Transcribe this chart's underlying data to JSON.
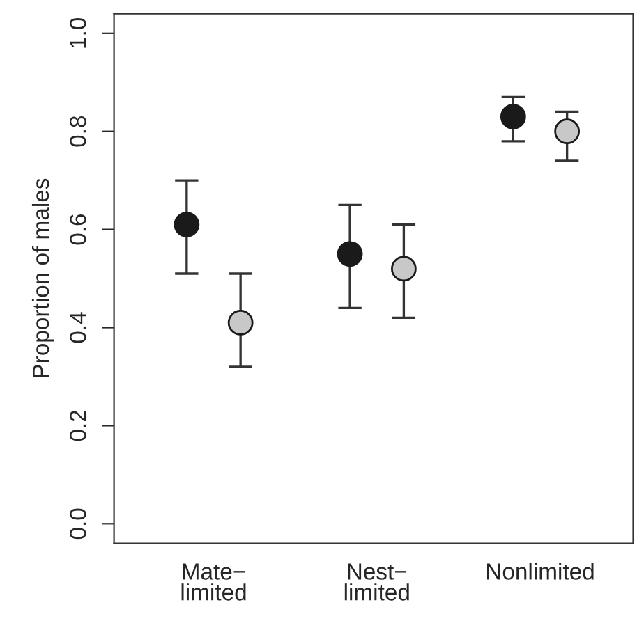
{
  "chart_data": {
    "type": "scatter",
    "ylabel": "Proportion of males",
    "categories": [
      "Mate−\nlimited",
      "Nest−\nlimited",
      "Nonlimited"
    ],
    "series": [
      {
        "color": "#1a1a1a",
        "values": [
          0.61,
          0.55,
          0.83
        ],
        "errors": [
          [
            0.51,
            0.7
          ],
          [
            0.44,
            0.65
          ],
          [
            0.78,
            0.87
          ]
        ]
      },
      {
        "color": "#c8c8c8",
        "values": [
          0.41,
          0.52,
          0.8
        ],
        "errors": [
          [
            0.32,
            0.51
          ],
          [
            0.42,
            0.61
          ],
          [
            0.74,
            0.84
          ]
        ]
      }
    ],
    "ylim": [
      -0.04,
      1.04
    ],
    "yticks": [
      {
        "value": 0,
        "label": "0.0"
      },
      0.2,
      0.4,
      0.6,
      0.8,
      {
        "value": 1,
        "label": "1.0"
      }
    ],
    "marker": "circle",
    "grid": false
  }
}
